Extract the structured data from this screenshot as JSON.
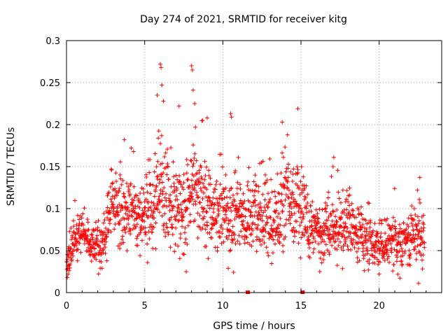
{
  "chart_data": {
    "type": "scatter",
    "title": "Day 274 of 2021, SRMTID for receiver kitg",
    "xlabel": "GPS time / hours",
    "ylabel": "SRMTID / TECUs",
    "xlim": [
      0,
      24
    ],
    "ylim": [
      0,
      0.3
    ],
    "x_ticks": [
      0,
      5,
      10,
      15,
      20
    ],
    "x_tick_labels": [
      "0",
      "5",
      "10",
      "15",
      "20"
    ],
    "y_ticks": [
      0,
      0.05,
      0.1,
      0.15,
      0.2,
      0.25,
      0.3
    ],
    "y_tick_labels": [
      "0",
      "0.05",
      "0.1",
      "0.15",
      "0.2",
      "0.25",
      "0.3"
    ],
    "grid": true,
    "series_color": "#ff0000",
    "marker": "plus",
    "profile_hours": [
      0,
      0.3,
      0.7,
      1.0,
      1.5,
      2.0,
      2.5,
      3.0,
      3.5,
      4.0,
      4.5,
      5.0,
      5.5,
      6.0,
      6.5,
      7.0,
      7.5,
      8.0,
      8.5,
      9.0,
      9.5,
      10.0,
      10.5,
      11.0,
      11.5,
      12.0,
      12.5,
      13.0,
      13.5,
      14.0,
      14.5,
      15.0,
      15.5,
      16.0,
      16.5,
      17.0,
      17.5,
      18.0,
      18.5,
      19.0,
      19.5,
      20.0,
      20.5,
      21.0,
      21.5,
      22.0,
      22.5,
      22.8
    ],
    "profile_median": [
      0.035,
      0.05,
      0.07,
      0.065,
      0.06,
      0.05,
      0.07,
      0.11,
      0.09,
      0.1,
      0.095,
      0.09,
      0.1,
      0.13,
      0.11,
      0.1,
      0.09,
      0.12,
      0.11,
      0.1,
      0.09,
      0.095,
      0.09,
      0.1,
      0.085,
      0.1,
      0.095,
      0.09,
      0.085,
      0.12,
      0.1,
      0.11,
      0.07,
      0.075,
      0.07,
      0.08,
      0.075,
      0.085,
      0.07,
      0.065,
      0.06,
      0.055,
      0.06,
      0.06,
      0.055,
      0.065,
      0.075,
      0.06
    ],
    "profile_spread": [
      0.015,
      0.02,
      0.02,
      0.02,
      0.015,
      0.02,
      0.03,
      0.03,
      0.035,
      0.035,
      0.035,
      0.035,
      0.045,
      0.055,
      0.045,
      0.045,
      0.045,
      0.06,
      0.05,
      0.045,
      0.04,
      0.045,
      0.04,
      0.04,
      0.035,
      0.04,
      0.04,
      0.04,
      0.035,
      0.05,
      0.04,
      0.045,
      0.03,
      0.03,
      0.03,
      0.035,
      0.03,
      0.035,
      0.025,
      0.025,
      0.025,
      0.02,
      0.02,
      0.025,
      0.02,
      0.025,
      0.03,
      0.025
    ],
    "time_start_hours": 0,
    "time_end_hours": 22.9,
    "time_step_hours": 0.0125,
    "notable_points": [
      {
        "x": 6.0,
        "y": 0.272
      },
      {
        "x": 6.05,
        "y": 0.268
      },
      {
        "x": 8.0,
        "y": 0.27
      },
      {
        "x": 8.05,
        "y": 0.265
      },
      {
        "x": 6.1,
        "y": 0.247
      },
      {
        "x": 8.1,
        "y": 0.241
      },
      {
        "x": 5.8,
        "y": 0.235
      },
      {
        "x": 6.2,
        "y": 0.228
      },
      {
        "x": 8.2,
        "y": 0.225
      },
      {
        "x": 7.2,
        "y": 0.222
      },
      {
        "x": 14.8,
        "y": 0.219
      },
      {
        "x": 10.5,
        "y": 0.213
      },
      {
        "x": 10.55,
        "y": 0.209
      },
      {
        "x": 9.0,
        "y": 0.208
      },
      {
        "x": 13.8,
        "y": 0.203
      },
      {
        "x": 8.7,
        "y": 0.205
      },
      {
        "x": 3.7,
        "y": 0.182
      },
      {
        "x": 17.1,
        "y": 0.161
      },
      {
        "x": 17.05,
        "y": 0.15
      },
      {
        "x": 22.6,
        "y": 0.137
      },
      {
        "x": 0.05,
        "y": 0.018
      },
      {
        "x": 0.1,
        "y": 0.022
      },
      {
        "x": 20.0,
        "y": 0.022
      },
      {
        "x": 16.2,
        "y": 0.025
      },
      {
        "x": 11.6,
        "y": 0.0
      },
      {
        "x": 15.1,
        "y": 0.0
      }
    ],
    "seed": 20211001
  }
}
